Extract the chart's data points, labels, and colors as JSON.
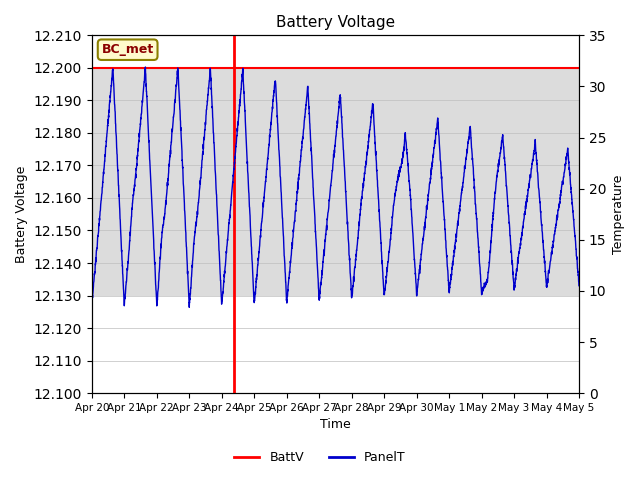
{
  "title": "Battery Voltage",
  "xlabel": "Time",
  "ylabel_left": "Battery Voltage",
  "ylabel_right": "Temperature",
  "ylim_left": [
    12.1,
    12.21
  ],
  "ylim_right": [
    0,
    35
  ],
  "yticks_left": [
    12.1,
    12.11,
    12.12,
    12.13,
    12.14,
    12.15,
    12.16,
    12.17,
    12.18,
    12.19,
    12.2,
    12.21
  ],
  "yticks_right": [
    0,
    5,
    10,
    15,
    20,
    25,
    30,
    35
  ],
  "hline_value": 12.2,
  "hline_color": "#FF0000",
  "vline_x": 4.38,
  "vline_color": "#FF0000",
  "annotation_label": "BC_met",
  "bg_band_ymin": 12.13,
  "bg_band_ymax": 12.2,
  "bg_band_color": "#DCDCDC",
  "panel_line_color": "#0000CC",
  "legend_batt_color": "#FF0000",
  "legend_panel_color": "#0000CC",
  "x_tick_labels": [
    "Apr 20",
    "Apr 21",
    "Apr 22",
    "Apr 23",
    "Apr 24",
    "Apr 25",
    "Apr 26",
    "Apr 27",
    "Apr 28",
    "Apr 29",
    "Apr 30",
    "May 1",
    "May 2",
    "May 3",
    "May 4",
    "May 5"
  ],
  "x_tick_positions": [
    0,
    1,
    2,
    3,
    4,
    5,
    6,
    7,
    8,
    9,
    10,
    11,
    12,
    13,
    14,
    15
  ]
}
